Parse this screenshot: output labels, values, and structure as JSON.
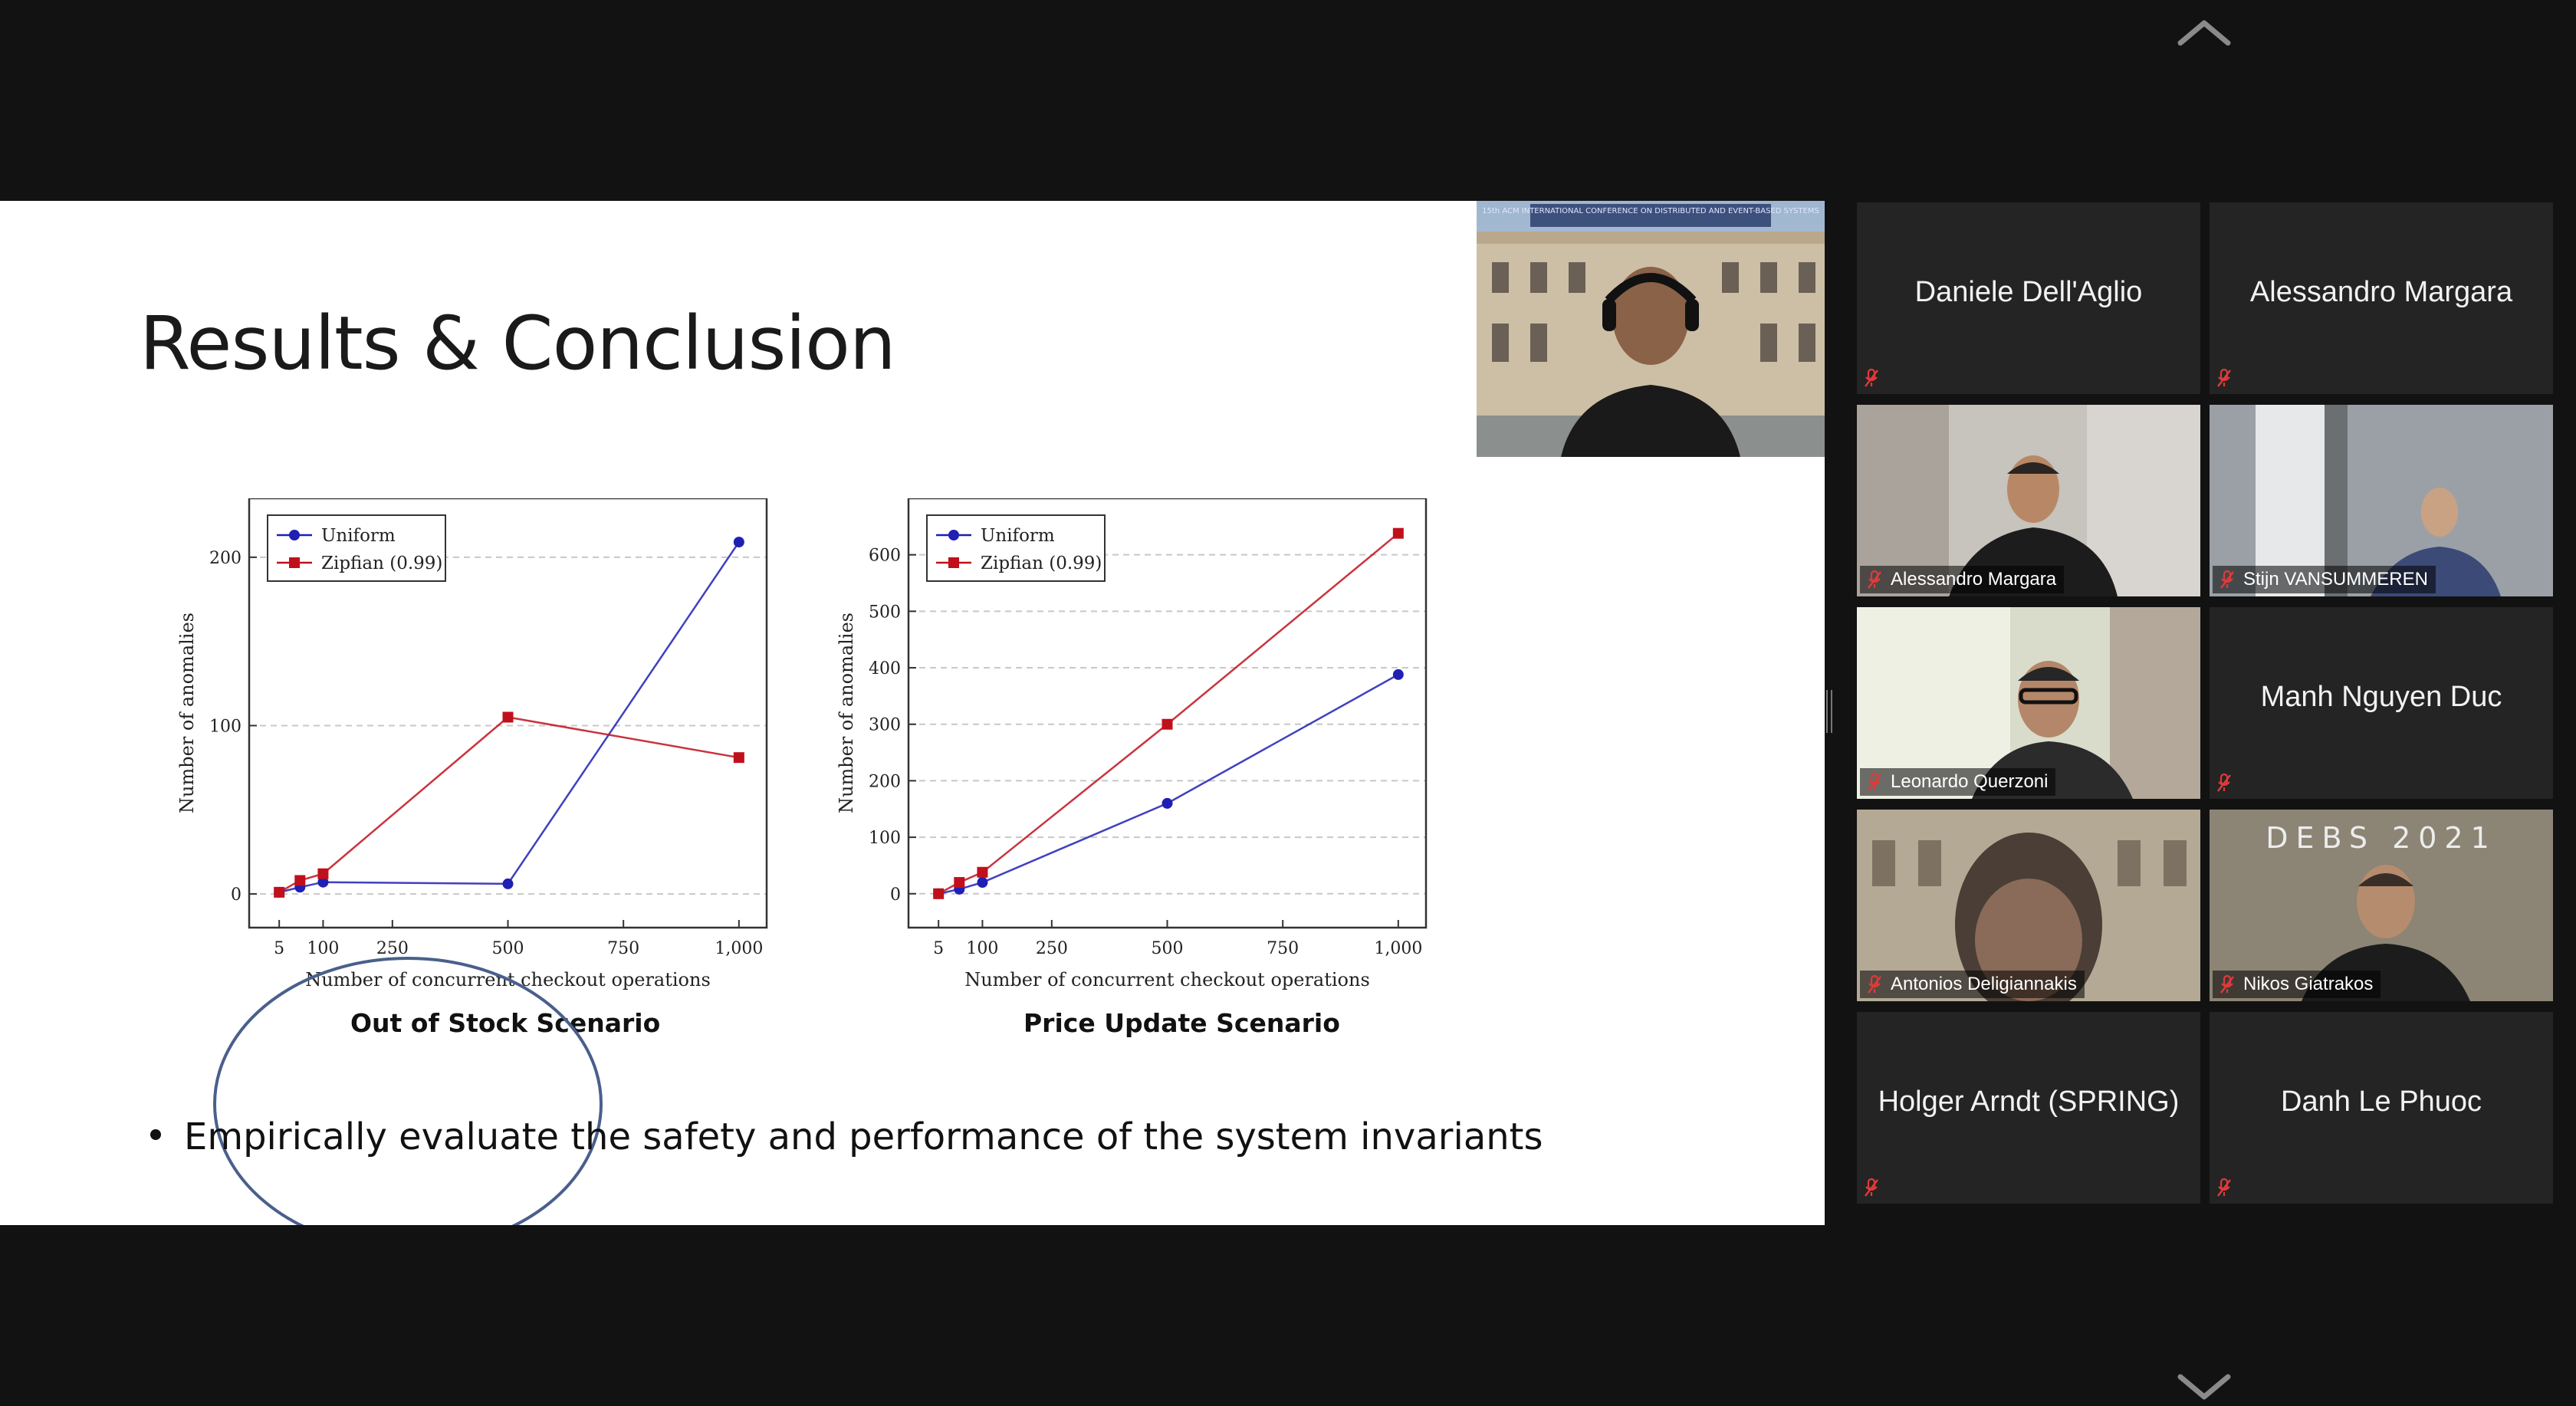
{
  "slide": {
    "title": "Results & Conclusion",
    "bullet": "Empirically evaluate the safety and performance of the system invariants",
    "scenario_a": "Out of Stock Scenario",
    "scenario_b": "Price Update Scenario"
  },
  "chart_data": [
    {
      "type": "line",
      "title": "",
      "xlabel": "Number of concurrent checkout operations",
      "ylabel": "Number of anomalies",
      "x_ticks": [
        "5",
        "100",
        "250",
        "500",
        "750",
        "1,000"
      ],
      "y_ticks": [
        "0",
        "100",
        "200"
      ],
      "xlim": [
        -60,
        1060
      ],
      "ylim": [
        -20,
        235
      ],
      "legend_position": "top-left",
      "grid": "dashed horizontal",
      "series": [
        {
          "name": "Uniform",
          "color": "#1f1fb4",
          "marker": "circle",
          "x": [
            5,
            50,
            100,
            500,
            1000
          ],
          "y": [
            1,
            4,
            7,
            6,
            209
          ]
        },
        {
          "name": "Zipfian (0.99)",
          "color": "#c0101c",
          "marker": "square",
          "x": [
            5,
            50,
            100,
            500,
            1000
          ],
          "y": [
            1,
            8,
            12,
            105,
            81
          ]
        }
      ]
    },
    {
      "type": "line",
      "title": "",
      "xlabel": "Number of concurrent checkout operations",
      "ylabel": "Number of anomalies",
      "x_ticks": [
        "5",
        "100",
        "250",
        "500",
        "750",
        "1,000"
      ],
      "y_ticks": [
        "0",
        "100",
        "200",
        "300",
        "400",
        "500",
        "600"
      ],
      "xlim": [
        -60,
        1060
      ],
      "ylim": [
        -60,
        700
      ],
      "legend_position": "top-left",
      "grid": "dashed horizontal",
      "series": [
        {
          "name": "Uniform",
          "color": "#1f1fb4",
          "marker": "circle",
          "x": [
            5,
            50,
            100,
            500,
            1000
          ],
          "y": [
            0,
            8,
            20,
            160,
            388
          ]
        },
        {
          "name": "Zipfian (0.99)",
          "color": "#c0101c",
          "marker": "square",
          "x": [
            5,
            50,
            100,
            500,
            1000
          ],
          "y": [
            0,
            20,
            38,
            300,
            638
          ]
        }
      ]
    }
  ],
  "speaker": {
    "conference_banner": "15th ACM INTERNATIONAL CONFERENCE ON DISTRIBUTED AND EVENT-BASED SYSTEMS"
  },
  "participants": [
    {
      "name": "Daniele Dell'Aglio",
      "video": false,
      "muted": true
    },
    {
      "name": "Alessandro Margara",
      "video": false,
      "muted": true
    },
    {
      "name": "Alessandro Margara",
      "video": true,
      "muted": true
    },
    {
      "name": "Stijn VANSUMMEREN",
      "video": true,
      "muted": true,
      "active": true
    },
    {
      "name": "Leonardo Querzoni",
      "video": true,
      "muted": true
    },
    {
      "name": "Manh Nguyen Duc",
      "video": false,
      "muted": true
    },
    {
      "name": "Antonios Deligiannakis",
      "video": true,
      "muted": true
    },
    {
      "name": "Nikos Giatrakos",
      "video": true,
      "muted": true,
      "background_text": "DEBS 2021"
    },
    {
      "name": "Holger Arndt (SPRING)",
      "video": false,
      "muted": true
    },
    {
      "name": "Danh Le Phuoc",
      "video": false,
      "muted": true
    }
  ],
  "icons": {
    "mute": "muted-mic-icon",
    "scroll_up": "chevron-up-icon",
    "scroll_down": "chevron-down-icon"
  },
  "colors": {
    "background": "#121212",
    "tile": "#242424",
    "active_speaker_border": "#d5e07a",
    "mute_icon": "#e03a3a"
  }
}
